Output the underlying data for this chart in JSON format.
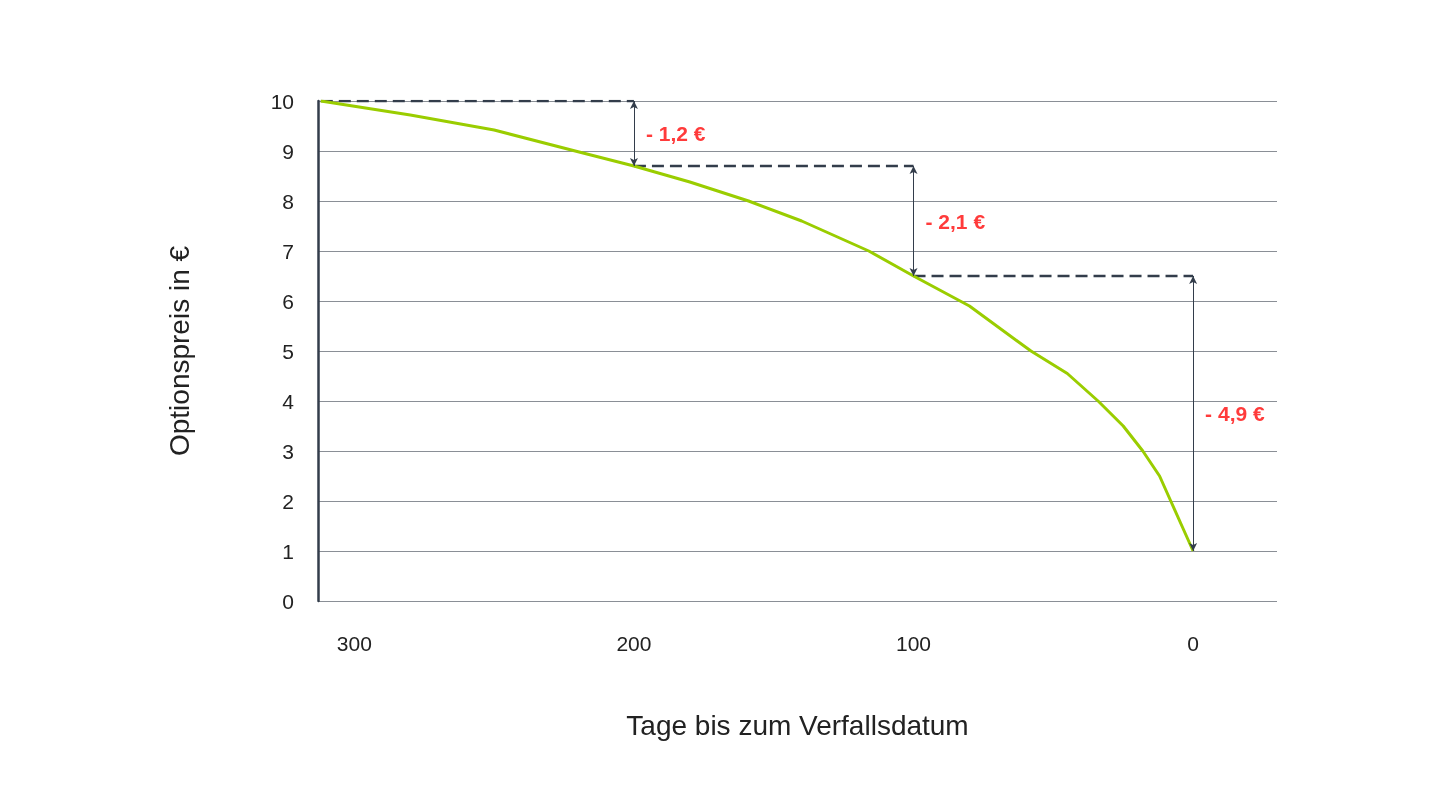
{
  "chart_data": {
    "type": "line",
    "xlabel": "Tage bis zum Verfallsdatum",
    "ylabel": "Optionspreis in €",
    "xlim": [
      313,
      -30
    ],
    "xticks": [
      300,
      200,
      100,
      0
    ],
    "ylim": [
      0,
      10
    ],
    "yticks": [
      0,
      1,
      2,
      3,
      4,
      5,
      6,
      7,
      8,
      9,
      10
    ],
    "grid": "y",
    "marker": "none",
    "series": [
      {
        "type": "line",
        "color": "#9acd00",
        "line_style": "solid",
        "x": [
          312,
          280,
          250,
          221,
          200,
          180,
          159,
          140,
          116,
          100,
          80,
          58,
          45,
          34,
          25,
          18,
          12,
          8,
          4,
          0
        ],
        "values": [
          10,
          9.72,
          9.42,
          9.0,
          8.7,
          8.38,
          8.0,
          7.6,
          7.0,
          6.5,
          5.9,
          5.0,
          4.55,
          4.0,
          3.5,
          3.0,
          2.5,
          2.0,
          1.5,
          1.0
        ]
      },
      {
        "type": "line",
        "color": "#333d4b",
        "line_style": "dashed",
        "x": [
          312,
          200
        ],
        "values": [
          10,
          10
        ]
      },
      {
        "type": "line",
        "color": "#333d4b",
        "line_style": "dashed",
        "x": [
          200,
          100
        ],
        "values": [
          8.7,
          8.7
        ]
      },
      {
        "type": "line",
        "color": "#333d4b",
        "line_style": "dashed",
        "x": [
          100,
          0
        ],
        "values": [
          6.5,
          6.5
        ]
      }
    ],
    "annotations": [
      "- 1,2 €",
      "- 2,1 €",
      "- 4,9 €"
    ]
  }
}
